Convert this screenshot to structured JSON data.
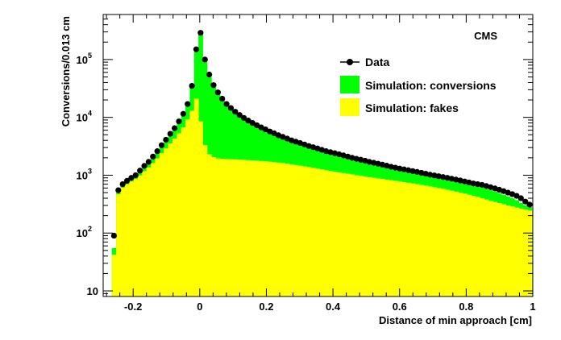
{
  "chart_data": {
    "type": "histogram",
    "annotation": "CMS",
    "xlabel": "Distance of min approach [cm]",
    "ylabel": "Conversions/0.013 cm",
    "xlim": [
      -0.29,
      1.0
    ],
    "ylim": [
      8,
      600000
    ],
    "log_y": true,
    "grid": false,
    "legend_position": "top-right",
    "x_ticks": [
      -0.2,
      0,
      0.2,
      0.4,
      0.6,
      0.8,
      1
    ],
    "x_tick_labels": [
      "-0.2",
      "0",
      "0.2",
      "0.4",
      "0.6",
      "0.8",
      "1"
    ],
    "y_ticks": [
      {
        "mantissa": "10",
        "exponent": ""
      },
      {
        "mantissa": "10",
        "exponent": "2"
      },
      {
        "mantissa": "10",
        "exponent": "3"
      },
      {
        "mantissa": "10",
        "exponent": "4"
      },
      {
        "mantissa": "10",
        "exponent": "5"
      }
    ],
    "y_tick_values": [
      10,
      100,
      1000,
      10000,
      100000
    ],
    "colors": {
      "conversions": "#00ff00",
      "fakes": "#ffff00",
      "data": "#000000"
    },
    "series": [
      {
        "name": "Data",
        "style": "markers"
      },
      {
        "name": "Simulation: conversions",
        "style": "filled"
      },
      {
        "name": "Simulation: fakes",
        "style": "filled"
      }
    ],
    "bin_width": 0.013,
    "bin_centers": [
      -0.2575,
      -0.2445,
      -0.2315,
      -0.2185,
      -0.2055,
      -0.1925,
      -0.1795,
      -0.1665,
      -0.1535,
      -0.1405,
      -0.1275,
      -0.1145,
      -0.1015,
      -0.0885,
      -0.0755,
      -0.0625,
      -0.0495,
      -0.0365,
      -0.0235,
      -0.0105,
      0.0025,
      0.0155,
      0.0285,
      0.0415,
      0.0545,
      0.0675,
      0.0805,
      0.0935,
      0.1065,
      0.1195,
      0.1325,
      0.1455,
      0.1585,
      0.1715,
      0.1845,
      0.1975,
      0.2105,
      0.2235,
      0.2365,
      0.2495,
      0.2625,
      0.2755,
      0.2885,
      0.3015,
      0.3145,
      0.3275,
      0.3405,
      0.3535,
      0.3665,
      0.3795,
      0.3925,
      0.4055,
      0.4185,
      0.4315,
      0.4445,
      0.4575,
      0.4705,
      0.4835,
      0.4965,
      0.5095,
      0.5225,
      0.5355,
      0.5485,
      0.5615,
      0.5745,
      0.5875,
      0.6005,
      0.6135,
      0.6265,
      0.6395,
      0.6525,
      0.6655,
      0.6785,
      0.6915,
      0.7045,
      0.7175,
      0.7305,
      0.7435,
      0.7565,
      0.7695,
      0.7825,
      0.7955,
      0.8085,
      0.8215,
      0.8345,
      0.8475,
      0.8605,
      0.8735,
      0.8865,
      0.8995,
      0.9125,
      0.9255,
      0.9385,
      0.9515,
      0.9645,
      0.9775,
      0.9905
    ],
    "data_counts": [
      90,
      550,
      700,
      800,
      900,
      1000,
      1200,
      1450,
      1700,
      2100,
      2600,
      3300,
      4100,
      5200,
      6500,
      8500,
      11500,
      17000,
      35000,
      150000,
      290000,
      100000,
      55000,
      36000,
      27000,
      21000,
      17000,
      14500,
      12500,
      11000,
      9800,
      8800,
      8000,
      7300,
      6700,
      6200,
      5700,
      5300,
      4900,
      4600,
      4300,
      4000,
      3800,
      3600,
      3400,
      3200,
      3050,
      2900,
      2750,
      2600,
      2500,
      2400,
      2300,
      2200,
      2100,
      2000,
      1920,
      1850,
      1780,
      1700,
      1640,
      1580,
      1520,
      1460,
      1400,
      1350,
      1300,
      1260,
      1220,
      1180,
      1140,
      1100,
      1060,
      1020,
      990,
      960,
      930,
      900,
      870,
      840,
      810,
      780,
      750,
      720,
      700,
      680,
      650,
      620,
      590,
      560,
      530,
      500,
      470,
      440,
      400,
      350,
      310
    ],
    "conversions_stack": [
      55,
      500,
      650,
      760,
      860,
      960,
      1130,
      1350,
      1600,
      1950,
      2400,
      3000,
      3700,
      4700,
      5900,
      7800,
      10500,
      15500,
      32000,
      140000,
      280000,
      92000,
      50000,
      33000,
      25000,
      19500,
      15800,
      13500,
      11800,
      10300,
      9200,
      8300,
      7500,
      6900,
      6300,
      5800,
      5400,
      5000,
      4600,
      4300,
      4050,
      3800,
      3600,
      3400,
      3200,
      3050,
      2900,
      2750,
      2600,
      2450,
      2350,
      2250,
      2150,
      2060,
      1970,
      1890,
      1810,
      1740,
      1670,
      1600,
      1540,
      1480,
      1420,
      1370,
      1320,
      1270,
      1220,
      1180,
      1140,
      1100,
      1060,
      1020,
      990,
      950,
      920,
      890,
      860,
      830,
      800,
      770,
      740,
      710,
      680,
      650,
      630,
      610,
      580,
      550,
      520,
      490,
      460,
      430,
      400,
      370,
      330,
      300,
      280
    ],
    "fakes_values": [
      42,
      470,
      610,
      700,
      780,
      860,
      990,
      1170,
      1360,
      1620,
      1950,
      2400,
      2900,
      3550,
      4300,
      5300,
      6700,
      9200,
      13000,
      21000,
      8500,
      3300,
      2300,
      2050,
      1960,
      1920,
      1900,
      1890,
      1880,
      1860,
      1840,
      1820,
      1800,
      1780,
      1760,
      1740,
      1710,
      1680,
      1650,
      1620,
      1580,
      1540,
      1500,
      1460,
      1420,
      1380,
      1340,
      1300,
      1260,
      1220,
      1180,
      1150,
      1120,
      1090,
      1060,
      1030,
      1000,
      975,
      950,
      925,
      900,
      880,
      860,
      840,
      820,
      800,
      780,
      760,
      740,
      720,
      700,
      680,
      660,
      640,
      620,
      600,
      580,
      560,
      540,
      520,
      500,
      480,
      460,
      440,
      420,
      400,
      380,
      360,
      345,
      330,
      315,
      300,
      288,
      276,
      265,
      255,
      245
    ]
  }
}
